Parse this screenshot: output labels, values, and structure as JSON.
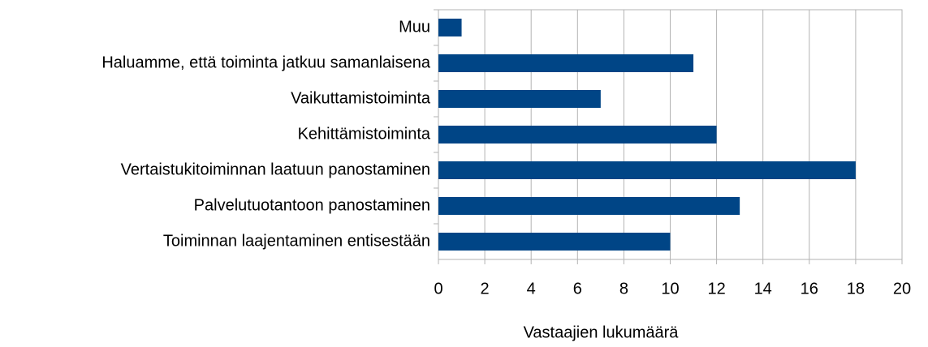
{
  "chart_data": {
    "type": "hbar",
    "xlabel": "Vastaajien lukumäärä",
    "categories": [
      "Muu",
      "Haluamme, että toiminta jatkuu samanlaisena",
      "Vaikuttamistoiminta",
      "Kehittämistoiminta",
      "Vertaistukitoiminnan laatuun panostaminen",
      "Palvelutuotantoon panostaminen",
      "Toiminnan laajentaminen entisestään"
    ],
    "values": [
      1,
      11,
      7,
      12,
      18,
      13,
      10
    ],
    "color": "#004586",
    "xlim": [
      0,
      20
    ],
    "xticks": [
      0,
      2,
      4,
      6,
      8,
      10,
      12,
      14,
      16,
      18,
      20
    ],
    "grid": true
  }
}
